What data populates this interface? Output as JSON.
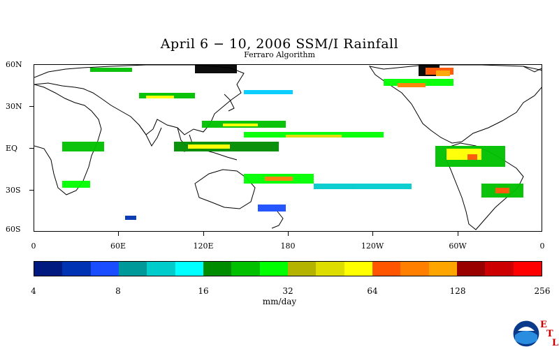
{
  "header": {
    "title": "April 6 − 10, 2006 SSM/I Rainfall",
    "subtitle": "Ferraro Algorithm"
  },
  "map": {
    "lat_labels": [
      "60N",
      "30N",
      "EQ",
      "30S",
      "60S"
    ],
    "lon_labels": [
      "0",
      "60E",
      "120E",
      "180",
      "120W",
      "60W",
      "0"
    ]
  },
  "colorbar": {
    "colors": [
      "#001a80",
      "#0033b3",
      "#1a4dff",
      "#009999",
      "#00cccc",
      "#00ffff",
      "#008c00",
      "#00c000",
      "#00ff00",
      "#b3b300",
      "#dddd00",
      "#ffff00",
      "#ff5500",
      "#ff8000",
      "#ffa500",
      "#990000",
      "#cc0000",
      "#ff0000"
    ],
    "tick_labels": [
      "4",
      "8",
      "16",
      "32",
      "64",
      "128",
      "256"
    ],
    "units": "mm/day"
  },
  "logo": {
    "name": "NOAA",
    "letters": [
      "E",
      "T",
      "L"
    ]
  }
}
